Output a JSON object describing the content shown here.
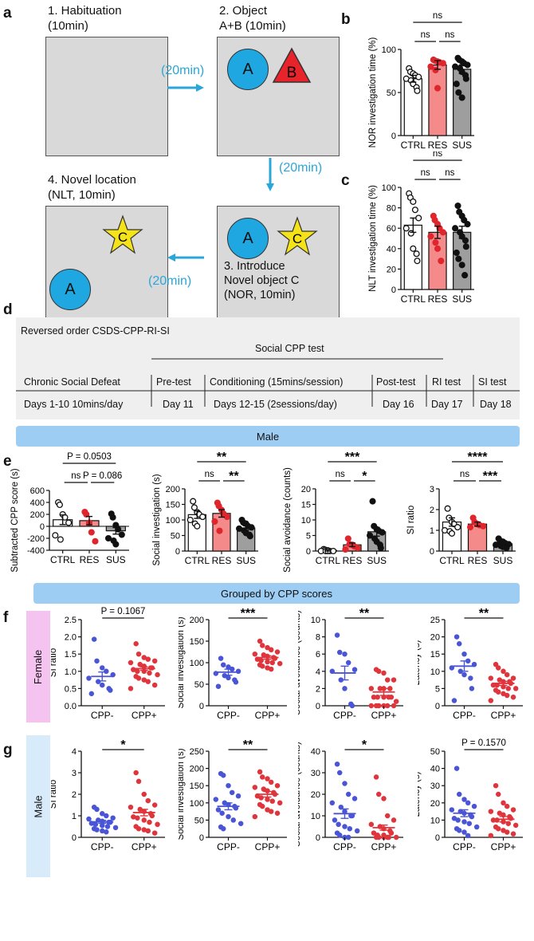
{
  "panels": {
    "a": "a",
    "b": "b",
    "c": "c",
    "d": "d",
    "e": "e",
    "f": "f",
    "g": "g"
  },
  "schematic": {
    "stage1": "1. Habituation\n(10min)",
    "stage2": "2. Object\nA+B (10min)",
    "stage3": "3. Introduce\nNovel object C\n(NOR, 10min)",
    "stage4": "4. Novel location\n(NLT, 10min)",
    "interval": "(20min)",
    "obj_a": "A",
    "obj_b": "B",
    "obj_c": "C"
  },
  "timeline": {
    "title": "Reversed order CSDS-CPP-RI-SI",
    "cpp_header": "Social CPP test",
    "phases": [
      "Chronic Social Defeat",
      "Pre-test",
      "Conditioning (15mins/session)",
      "Post-test",
      "RI test",
      "SI test"
    ],
    "days": [
      "Days 1-10 10mins/day",
      "Day 11",
      "Days 12-15 (2sessions/day)",
      "Day 16",
      "Day 17",
      "Day 18"
    ]
  },
  "bands": {
    "male": "Male",
    "grouped": "Grouped by CPP scores"
  },
  "side_labels": {
    "female": "Female",
    "male": "Male"
  },
  "colors": {
    "ctrl": "#ffffff",
    "res": "#f48a8a",
    "sus": "#9e9e9e",
    "res_dot": "#e0252d",
    "cpp_minus": "#4a55d6",
    "cpp_plus": "#e0353d",
    "accent": "#2ba6d9",
    "female_tab": "#f5c3f0",
    "male_tab": "#d7ebfb",
    "band": "#9dcdf3"
  },
  "chart_data": [
    {
      "id": "b",
      "type": "bar",
      "ylabel": "NOR investigation time (%)",
      "ylim": [
        0,
        100
      ],
      "yticks": [
        0,
        50,
        100
      ],
      "categories": [
        "CTRL",
        "RES",
        "SUS"
      ],
      "values": [
        66,
        82,
        77
      ],
      "errors": [
        4,
        5,
        5
      ],
      "points": [
        [
          78,
          74,
          72,
          70,
          68,
          66,
          64,
          60,
          56,
          52
        ],
        [
          88,
          87,
          86,
          85,
          84,
          80,
          76,
          55
        ],
        [
          90,
          88,
          86,
          84,
          82,
          80,
          78,
          74,
          70,
          66,
          60,
          50,
          44
        ]
      ],
      "sig": [
        {
          "from": 0,
          "to": 1,
          "label": "ns"
        },
        {
          "from": 1,
          "to": 2,
          "label": "ns"
        },
        {
          "from": 0,
          "to": 2,
          "label": "ns"
        }
      ]
    },
    {
      "id": "c",
      "type": "bar",
      "ylabel": "NLT investigation time (%)",
      "ylim": [
        0,
        100
      ],
      "yticks": [
        0,
        20,
        40,
        60,
        80,
        100
      ],
      "categories": [
        "CTRL",
        "RES",
        "SUS"
      ],
      "values": [
        63,
        56,
        56
      ],
      "errors": [
        7,
        6,
        6
      ],
      "points": [
        [
          94,
          90,
          86,
          78,
          70,
          60,
          55,
          40,
          35,
          28
        ],
        [
          72,
          68,
          64,
          60,
          56,
          52,
          46,
          40,
          28
        ],
        [
          82,
          76,
          72,
          68,
          64,
          60,
          56,
          52,
          48,
          42,
          36,
          30,
          24,
          14
        ]
      ],
      "sig": [
        {
          "from": 0,
          "to": 1,
          "label": "ns"
        },
        {
          "from": 1,
          "to": 2,
          "label": "ns"
        },
        {
          "from": 0,
          "to": 2,
          "label": "ns"
        }
      ]
    },
    {
      "id": "e1",
      "type": "bar",
      "ylabel": "Subtracted CPP score (s)",
      "ylim": [
        -400,
        600
      ],
      "yticks": [
        -400,
        -200,
        0,
        200,
        400,
        600
      ],
      "categories": [
        "CTRL",
        "RES",
        "SUS"
      ],
      "values": [
        110,
        95,
        -75
      ],
      "errors": [
        80,
        70,
        55
      ],
      "points": [
        [
          400,
          360,
          200,
          150,
          60,
          -150,
          -220
        ],
        [
          240,
          200,
          60,
          -100,
          -250
        ],
        [
          210,
          150,
          20,
          -50,
          -140,
          -200,
          -240,
          -300
        ]
      ],
      "sig": [
        {
          "from": 0,
          "to": 1,
          "label": "ns"
        },
        {
          "from": 1,
          "to": 2,
          "label": "P = 0.086"
        },
        {
          "from": 0,
          "to": 2,
          "label": "P = 0.0503"
        }
      ]
    },
    {
      "id": "e2",
      "type": "bar",
      "ylabel": "Social investigation (s)",
      "ylim": [
        0,
        200
      ],
      "yticks": [
        0,
        50,
        100,
        150,
        200
      ],
      "categories": [
        "CTRL",
        "RES",
        "SUS"
      ],
      "values": [
        117,
        121,
        74
      ],
      "errors": [
        12,
        12,
        7
      ],
      "points": [
        [
          160,
          140,
          125,
          118,
          110,
          100,
          88,
          80
        ],
        [
          155,
          145,
          132,
          120,
          110,
          95,
          65
        ],
        [
          100,
          92,
          88,
          80,
          76,
          72,
          66,
          58,
          52,
          48
        ]
      ],
      "sig": [
        {
          "from": 0,
          "to": 1,
          "label": "ns"
        },
        {
          "from": 1,
          "to": 2,
          "label": "**"
        },
        {
          "from": 0,
          "to": 2,
          "label": "**"
        }
      ]
    },
    {
      "id": "e3",
      "type": "bar",
      "ylabel": "Social avoidance (counts)",
      "ylim": [
        0,
        20
      ],
      "yticks": [
        0,
        5,
        10,
        15,
        20
      ],
      "categories": [
        "CTRL",
        "RES",
        "SUS"
      ],
      "values": [
        0.2,
        2,
        6.2
      ],
      "errors": [
        0.2,
        0.6,
        1.4
      ],
      "points": [
        [
          0.6,
          0.4,
          0.2,
          0,
          0,
          0,
          0,
          0
        ],
        [
          4,
          2.2,
          2,
          1.5,
          1,
          0.5
        ],
        [
          16,
          8,
          7,
          6.5,
          6,
          5,
          4,
          3,
          2,
          1
        ]
      ],
      "sig": [
        {
          "from": 0,
          "to": 1,
          "label": "ns"
        },
        {
          "from": 1,
          "to": 2,
          "label": "*"
        },
        {
          "from": 0,
          "to": 2,
          "label": "***"
        }
      ]
    },
    {
      "id": "e4",
      "type": "bar",
      "ylabel": "SI ratio",
      "ylim": [
        0,
        3
      ],
      "yticks": [
        0,
        1,
        2,
        3
      ],
      "categories": [
        "CTRL",
        "RES",
        "SUS"
      ],
      "values": [
        1.4,
        1.3,
        0.35
      ],
      "errors": [
        0.2,
        0.1,
        0.06
      ],
      "points": [
        [
          2.05,
          1.6,
          1.4,
          1.3,
          1.15,
          1.0,
          0.95,
          0.85
        ],
        [
          1.6,
          1.4,
          1.3,
          1.25,
          1.2,
          1.15
        ],
        [
          0.6,
          0.5,
          0.45,
          0.38,
          0.33,
          0.3,
          0.25,
          0.2,
          0.15
        ]
      ],
      "sig": [
        {
          "from": 0,
          "to": 1,
          "label": "ns"
        },
        {
          "from": 1,
          "to": 2,
          "label": "***"
        },
        {
          "from": 0,
          "to": 2,
          "label": "****"
        }
      ]
    },
    {
      "id": "f1",
      "type": "scatter",
      "ylabel": "SI ratio",
      "ylim": [
        0.0,
        2.5
      ],
      "yticks": [
        0.0,
        0.5,
        1.0,
        1.5,
        2.0,
        2.5
      ],
      "decimals": 1,
      "categories": [
        "CPP-",
        "CPP+"
      ],
      "values": [
        0.85,
        1.08
      ],
      "errors": [
        0.13,
        0.05
      ],
      "points": [
        [
          1.93,
          1.3,
          1.1,
          1.0,
          0.9,
          0.8,
          0.7,
          0.6,
          0.5,
          0.45,
          0.35
        ],
        [
          1.8,
          1.5,
          1.4,
          1.35,
          1.3,
          1.25,
          1.2,
          1.15,
          1.1,
          1.1,
          1.05,
          1.0,
          1.0,
          0.95,
          0.9,
          0.85,
          0.8,
          0.75,
          0.7,
          0.6,
          0.5
        ]
      ],
      "sig": [
        {
          "from": 0,
          "to": 1,
          "label": "P = 0.1067"
        }
      ]
    },
    {
      "id": "f2",
      "type": "scatter",
      "ylabel": "Social investigation (s)",
      "ylim": [
        0,
        200
      ],
      "yticks": [
        0,
        50,
        100,
        150,
        200
      ],
      "categories": [
        "CPP-",
        "CPP+"
      ],
      "values": [
        78,
        112
      ],
      "errors": [
        7,
        4
      ],
      "points": [
        [
          110,
          95,
          90,
          85,
          80,
          75,
          70,
          65,
          60,
          55,
          45
        ],
        [
          150,
          140,
          135,
          130,
          125,
          120,
          118,
          115,
          112,
          110,
          108,
          105,
          102,
          100,
          98,
          95,
          92,
          88,
          85
        ]
      ],
      "sig": [
        {
          "from": 0,
          "to": 1,
          "label": "***"
        }
      ]
    },
    {
      "id": "f3",
      "type": "scatter",
      "ylabel": "Social avoidance (counts)",
      "ylim": [
        0,
        10
      ],
      "yticks": [
        0,
        2,
        4,
        6,
        8,
        10
      ],
      "categories": [
        "CPP-",
        "CPP+"
      ],
      "values": [
        3.8,
        1.6
      ],
      "errors": [
        0.8,
        0.4
      ],
      "points": [
        [
          8.2,
          6.2,
          6,
          5,
          4.2,
          4,
          3,
          2,
          0.2,
          0
        ],
        [
          4.2,
          4,
          3.8,
          3,
          3,
          2,
          2,
          2,
          2,
          1,
          1,
          1,
          1,
          1,
          0.5,
          0,
          0,
          0,
          0,
          0,
          0
        ]
      ],
      "sig": [
        {
          "from": 0,
          "to": 1,
          "label": "**"
        }
      ]
    },
    {
      "id": "f4",
      "type": "scatter",
      "ylabel": "Latency (s)",
      "ylim": [
        0,
        25
      ],
      "yticks": [
        0,
        5,
        10,
        15,
        20,
        25
      ],
      "categories": [
        "CPP-",
        "CPP+"
      ],
      "values": [
        11.5,
        6.5
      ],
      "errors": [
        1.5,
        0.6
      ],
      "points": [
        [
          20,
          18,
          15,
          13,
          12,
          11,
          10,
          9,
          8,
          5,
          1.5
        ],
        [
          12,
          11,
          10,
          9,
          8,
          8,
          7.5,
          7,
          7,
          6.5,
          6,
          6,
          5.5,
          5,
          5,
          4.5,
          4,
          3.5,
          3,
          2.5,
          1.5
        ]
      ],
      "sig": [
        {
          "from": 0,
          "to": 1,
          "label": "**"
        }
      ]
    },
    {
      "id": "g1",
      "type": "scatter",
      "ylabel": "SI ratio",
      "ylim": [
        0,
        4
      ],
      "yticks": [
        0,
        1,
        2,
        3,
        4
      ],
      "categories": [
        "CPP-",
        "CPP+"
      ],
      "values": [
        0.72,
        1.15
      ],
      "errors": [
        0.07,
        0.15
      ],
      "points": [
        [
          1.4,
          1.3,
          1.1,
          1.0,
          0.9,
          0.85,
          0.8,
          0.75,
          0.7,
          0.7,
          0.65,
          0.6,
          0.55,
          0.5,
          0.45,
          0.4,
          0.35,
          0.3,
          0.25
        ],
        [
          3.0,
          2.6,
          2.0,
          1.7,
          1.5,
          1.4,
          1.3,
          1.2,
          1.1,
          1.0,
          0.95,
          0.9,
          0.8,
          0.7,
          0.6,
          0.5,
          0.4,
          0.35,
          0.3,
          0.2
        ]
      ],
      "sig": [
        {
          "from": 0,
          "to": 1,
          "label": "*"
        }
      ]
    },
    {
      "id": "g2",
      "type": "scatter",
      "ylabel": "Social investigation (s)",
      "ylim": [
        0,
        250
      ],
      "yticks": [
        0,
        50,
        100,
        150,
        200,
        250
      ],
      "categories": [
        "CPP-",
        "CPP+"
      ],
      "values": [
        90,
        125
      ],
      "errors": [
        10,
        8
      ],
      "points": [
        [
          185,
          180,
          150,
          130,
          120,
          110,
          100,
          95,
          90,
          85,
          80,
          70,
          60,
          50,
          40,
          30,
          25
        ],
        [
          190,
          175,
          170,
          160,
          150,
          145,
          140,
          135,
          130,
          125,
          120,
          115,
          110,
          105,
          100,
          95,
          90,
          80,
          75,
          70,
          60
        ]
      ],
      "sig": [
        {
          "from": 0,
          "to": 1,
          "label": "**"
        }
      ]
    },
    {
      "id": "g3",
      "type": "scatter",
      "ylabel": "Social avoidance (counts)",
      "ylim": [
        0,
        40
      ],
      "yticks": [
        0,
        10,
        20,
        30,
        40
      ],
      "categories": [
        "CPP-",
        "CPP+"
      ],
      "values": [
        11,
        4.5
      ],
      "errors": [
        2.2,
        1.2
      ],
      "points": [
        [
          34,
          30,
          25,
          20,
          18,
          16,
          14,
          12,
          10,
          10,
          8,
          6,
          5,
          4,
          3,
          2,
          1,
          0,
          0
        ],
        [
          28,
          20,
          18,
          10,
          8,
          6,
          5,
          4,
          3,
          2,
          2,
          1,
          1,
          0,
          0,
          0,
          0,
          0,
          0
        ]
      ],
      "sig": [
        {
          "from": 0,
          "to": 1,
          "label": "*"
        }
      ]
    },
    {
      "id": "g4",
      "type": "scatter",
      "ylabel": "Latency (s)",
      "ylim": [
        0,
        50
      ],
      "yticks": [
        0,
        10,
        20,
        30,
        40,
        50
      ],
      "categories": [
        "CPP-",
        "CPP+"
      ],
      "values": [
        14,
        10.5
      ],
      "errors": [
        2,
        1.6
      ],
      "points": [
        [
          40,
          25,
          22,
          20,
          18,
          16,
          15,
          14,
          13,
          12,
          11,
          10,
          9,
          8,
          6,
          5,
          4,
          3,
          1
        ],
        [
          30,
          25,
          20,
          18,
          16,
          15,
          14,
          13,
          12,
          11,
          10,
          10,
          9,
          8,
          7,
          6,
          5,
          4,
          3,
          2,
          1
        ]
      ],
      "sig": [
        {
          "from": 0,
          "to": 1,
          "label": "P = 0.1570"
        }
      ]
    }
  ]
}
